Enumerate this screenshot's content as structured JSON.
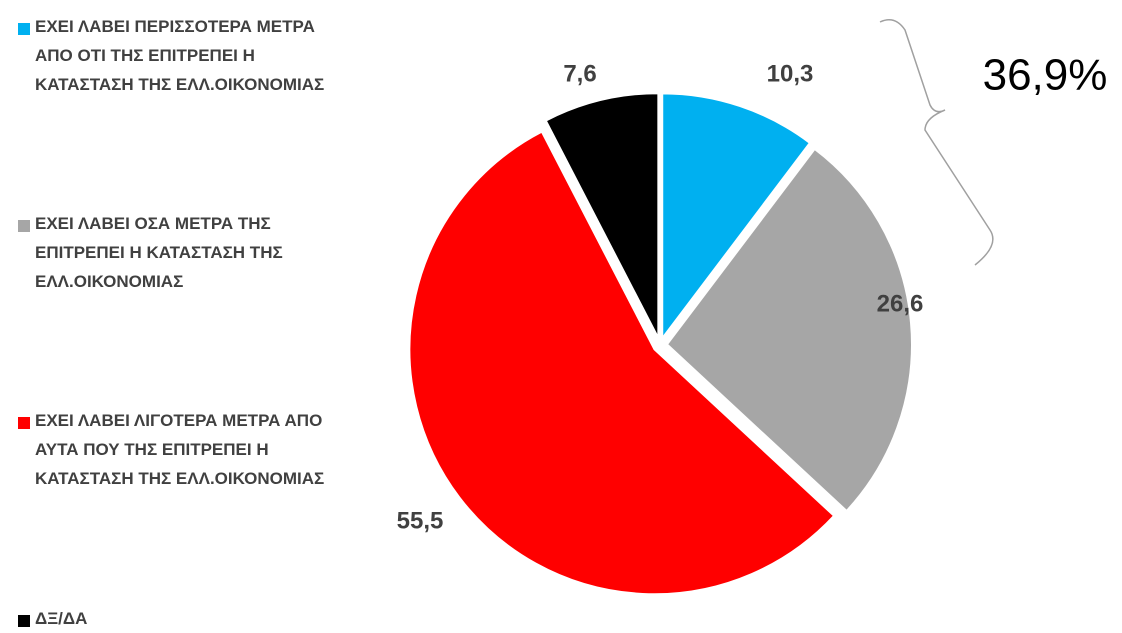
{
  "chart_data": {
    "type": "pie",
    "categories": [
      "ΕΧΕΙ ΛΑΒΕΙ ΠΕΡΙΣΣΟΤΕΡΑ ΜΕΤΡΑ ΑΠΟ ΟΤΙ ΤΗΣ ΕΠΙΤΡΕΠΕΙ Η ΚΑΤΑΣΤΑΣΗ ΤΗΣ ΕΛΛ.ΟΙΚΟΝΟΜΙΑΣ",
      "ΕΧΕΙ ΛΑΒΕΙ ΟΣΑ ΜΕΤΡΑ ΤΗΣ ΕΠΙΤΡΕΠΕΙ Η ΚΑΤΑΣΤΑΣΗ ΤΗΣ ΕΛΛ.ΟΙΚΟΝΟΜΙΑΣ",
      "ΕΧΕΙ ΛΑΒΕΙ ΛΙΓΟΤΕΡΑ ΜΕΤΡΑ ΑΠΟ ΑΥΤΑ ΠΟΥ ΤΗΣ ΕΠΙΤΡΕΠΕΙ Η ΚΑΤΑΣΤΑΣΗ ΤΗΣ ΕΛΛ.ΟΙΚΟΝΟΜΙΑΣ",
      "ΔΞ/ΔΑ"
    ],
    "values": [
      10.3,
      26.6,
      55.5,
      7.6
    ],
    "value_labels": [
      "10,3",
      "26,6",
      "55,5",
      "7,6"
    ],
    "colors": [
      "#00b0f0",
      "#a6a6a6",
      "#ff0000",
      "#000000"
    ],
    "annotation": "36,9%"
  }
}
